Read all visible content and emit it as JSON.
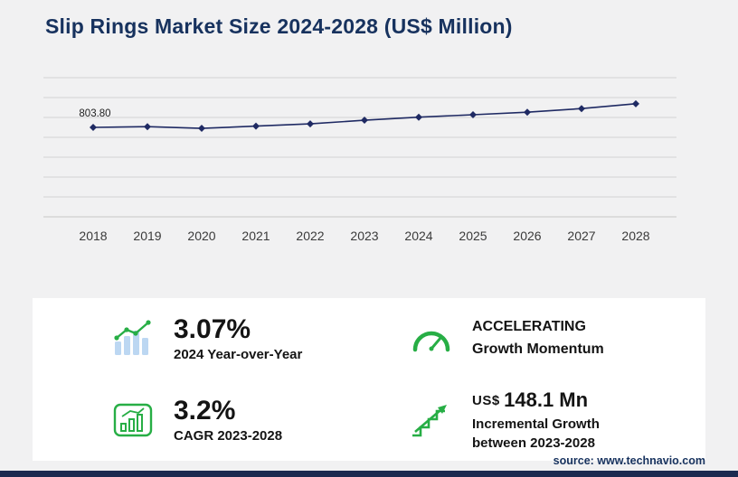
{
  "title": "Slip Rings Market Size 2024-2028 (US$ Million)",
  "source": "source: www.technavio.com",
  "colors": {
    "navy": "#17325e",
    "line": "#1f2a63",
    "green": "#27ae45",
    "bar_blue": "#bcd7f2",
    "grid": "#d4d4d4",
    "panel": "#ffffff",
    "background": "#f1f1f2"
  },
  "chart_data": {
    "type": "line",
    "title": "Slip Rings Market Size 2024-2028 (US$ Million)",
    "x": [
      "2018",
      "2019",
      "2020",
      "2021",
      "2022",
      "2023",
      "2024",
      "2025",
      "2026",
      "2027",
      "2028"
    ],
    "values": [
      803.8,
      810,
      795,
      815,
      835,
      868,
      895,
      917,
      940,
      972,
      1016
    ],
    "first_point_label": "803.80",
    "ylabel": "US$ Million",
    "ylim": [
      0,
      1250
    ],
    "grid": true,
    "legend": false,
    "line_color": "#1f2a63"
  },
  "stats": {
    "yoy": {
      "value": "3.07%",
      "label": "2024 Year-over-Year"
    },
    "momentum": {
      "line1": "ACCELERATING",
      "line2": "Growth Momentum"
    },
    "cagr": {
      "value": "3.2%",
      "label": "CAGR 2023-2028"
    },
    "incremental": {
      "prefix": "US$",
      "value": "148.1 Mn",
      "line1": "Incremental Growth",
      "line2": "between 2023-2028"
    }
  }
}
